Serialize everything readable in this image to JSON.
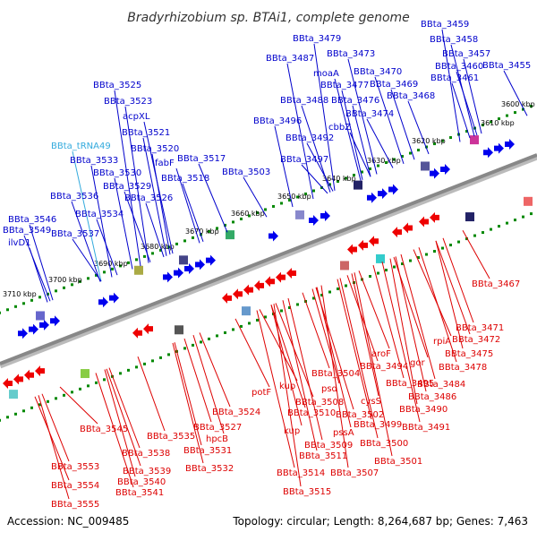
{
  "title": "Bradyrhizobium sp. BTAi1, complete genome",
  "footer": {
    "accession": "Accession: NC_009485",
    "summary": "Topology: circular; Length: 8,264,687 bp; Genes: 7,463"
  },
  "colors": {
    "forward_label": "#0000cc",
    "reverse_label": "#dd0000",
    "rna_label": "#33aadd",
    "backbone": "#888888",
    "ticks": "#008800",
    "forward_gene": "#0000ee",
    "reverse_gene": "#ee0000"
  },
  "kbp_ticks": [
    {
      "label": "3600 kbp"
    },
    {
      "label": "3610 kbp"
    },
    {
      "label": "3620 kbp"
    },
    {
      "label": "3630 kbp"
    },
    {
      "label": "3640 kbp"
    },
    {
      "label": "3650 kbp"
    },
    {
      "label": "3660 kbp"
    },
    {
      "label": "3670 kbp"
    },
    {
      "label": "3680 kbp"
    },
    {
      "label": "3690 kbp"
    },
    {
      "label": "3700 kbp"
    },
    {
      "label": "3710 kbp"
    }
  ],
  "forward_labels": [
    {
      "text": "BBta_3459"
    },
    {
      "text": "BBta_3479"
    },
    {
      "text": "BBta_3458"
    },
    {
      "text": "BBta_3487"
    },
    {
      "text": "BBta_3473"
    },
    {
      "text": "BBta_3457"
    },
    {
      "text": "BBta_3460"
    },
    {
      "text": "BBta_3455"
    },
    {
      "text": "moaA"
    },
    {
      "text": "BBta_3470"
    },
    {
      "text": "BBta_3461"
    },
    {
      "text": "BBta_3477"
    },
    {
      "text": "BBta_3469"
    },
    {
      "text": "BBta_3525"
    },
    {
      "text": "BBta_3488"
    },
    {
      "text": "BBta_3476"
    },
    {
      "text": "BBta_3468"
    },
    {
      "text": "BBta_3523"
    },
    {
      "text": "BBta_3474"
    },
    {
      "text": "acpXL"
    },
    {
      "text": "BBta_3496"
    },
    {
      "text": "cbbZ"
    },
    {
      "text": "BBta_3521"
    },
    {
      "text": "BBta_3492"
    },
    {
      "text": "BBta_tRNA49",
      "rna": true
    },
    {
      "text": "BBta_3520"
    },
    {
      "text": "BBta_3533"
    },
    {
      "text": "fabF"
    },
    {
      "text": "BBta_3497"
    },
    {
      "text": "BBta_3517"
    },
    {
      "text": "BBta_3530"
    },
    {
      "text": "BBta_3518"
    },
    {
      "text": "BBta_3503"
    },
    {
      "text": "BBta_3529"
    },
    {
      "text": "BBta_3536"
    },
    {
      "text": "BBta_3526"
    },
    {
      "text": "BBta_3534"
    },
    {
      "text": "BBta_3546"
    },
    {
      "text": "BBta_3549"
    },
    {
      "text": "BBta_3537"
    },
    {
      "text": "ilvD1"
    }
  ],
  "reverse_labels": [
    {
      "text": "BBta_3467"
    },
    {
      "text": "BBta_3471"
    },
    {
      "text": "BBta_3472"
    },
    {
      "text": "rpiA"
    },
    {
      "text": "BBta_3475"
    },
    {
      "text": "aroF"
    },
    {
      "text": "gor"
    },
    {
      "text": "BBta_3478"
    },
    {
      "text": "BBta_3504"
    },
    {
      "text": "BBta_3494"
    },
    {
      "text": "BBta_3484"
    },
    {
      "text": "kup"
    },
    {
      "text": "psd"
    },
    {
      "text": "BBta_3495"
    },
    {
      "text": "potF"
    },
    {
      "text": "BBta_3508"
    },
    {
      "text": "cysS"
    },
    {
      "text": "BBta_3486"
    },
    {
      "text": "BBta_3510"
    },
    {
      "text": "BBta_3502"
    },
    {
      "text": "BBta_3490"
    },
    {
      "text": "BBta_3524"
    },
    {
      "text": "BBta_3499"
    },
    {
      "text": "BBta_3491"
    },
    {
      "text": "BBta_3527"
    },
    {
      "text": "kup"
    },
    {
      "text": "pssA"
    },
    {
      "text": "BBta_3545"
    },
    {
      "text": "BBta_3535"
    },
    {
      "text": "hpcB"
    },
    {
      "text": "BBta_3509"
    },
    {
      "text": "BBta_3500"
    },
    {
      "text": "BBta_3531"
    },
    {
      "text": "BBta_3538"
    },
    {
      "text": "BBta_3511"
    },
    {
      "text": "BBta_3501"
    },
    {
      "text": "BBta_3553"
    },
    {
      "text": "BBta_3532"
    },
    {
      "text": "BBta_3539"
    },
    {
      "text": "BBta_3514"
    },
    {
      "text": "BBta_3507"
    },
    {
      "text": "BBta_3540"
    },
    {
      "text": "BBta_3554"
    },
    {
      "text": "BBta_3541"
    },
    {
      "text": "BBta_3515"
    },
    {
      "text": "BBta_3555"
    }
  ]
}
